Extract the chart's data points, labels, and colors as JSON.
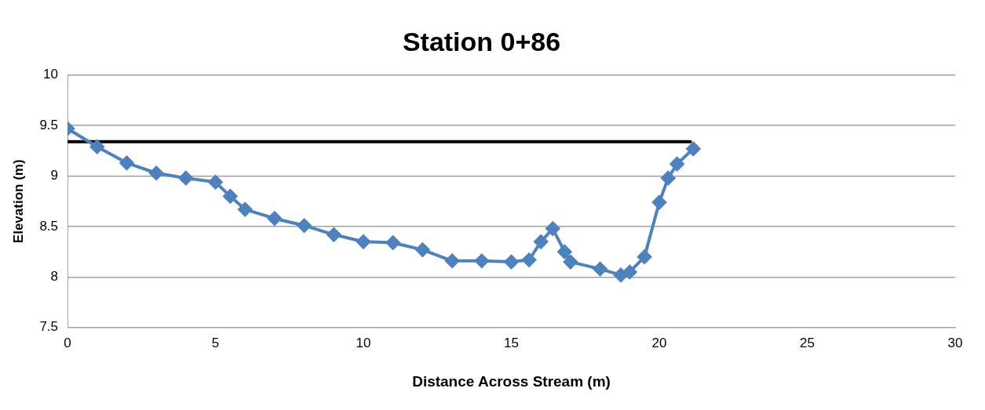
{
  "chart_data": {
    "type": "line",
    "title": "Station 0+86",
    "xlabel": "Distance Across Stream (m)",
    "ylabel": "Elevation (m)",
    "xlim": [
      0,
      30
    ],
    "xticks": [
      0,
      5,
      10,
      15,
      20,
      25,
      30
    ],
    "ylim": [
      7.5,
      10
    ],
    "yticks": [
      7.5,
      8,
      8.5,
      9,
      9.5,
      10
    ],
    "grid": "y",
    "legend": false,
    "series": [
      {
        "color": "#4f81bd",
        "marker": "diamond",
        "x": [
          0,
          1,
          2,
          3,
          4,
          5,
          5.5,
          6,
          7,
          8,
          9,
          10,
          11,
          12,
          13,
          14,
          15,
          15.6,
          16,
          16.4,
          16.8,
          17,
          18,
          18.7,
          19,
          19.5,
          20,
          20.3,
          20.6,
          21.15
        ],
        "values": [
          9.47,
          9.29,
          9.13,
          9.03,
          8.98,
          8.94,
          8.8,
          8.67,
          8.58,
          8.51,
          8.42,
          8.35,
          8.34,
          8.27,
          8.16,
          8.16,
          8.15,
          8.17,
          8.35,
          8.48,
          8.25,
          8.15,
          8.08,
          8.02,
          8.05,
          8.2,
          8.74,
          8.98,
          9.12,
          9.27
        ]
      },
      {
        "color": "#000000",
        "marker": "none",
        "x": [
          0,
          21.05
        ],
        "values": [
          9.34,
          9.34
        ]
      }
    ]
  }
}
